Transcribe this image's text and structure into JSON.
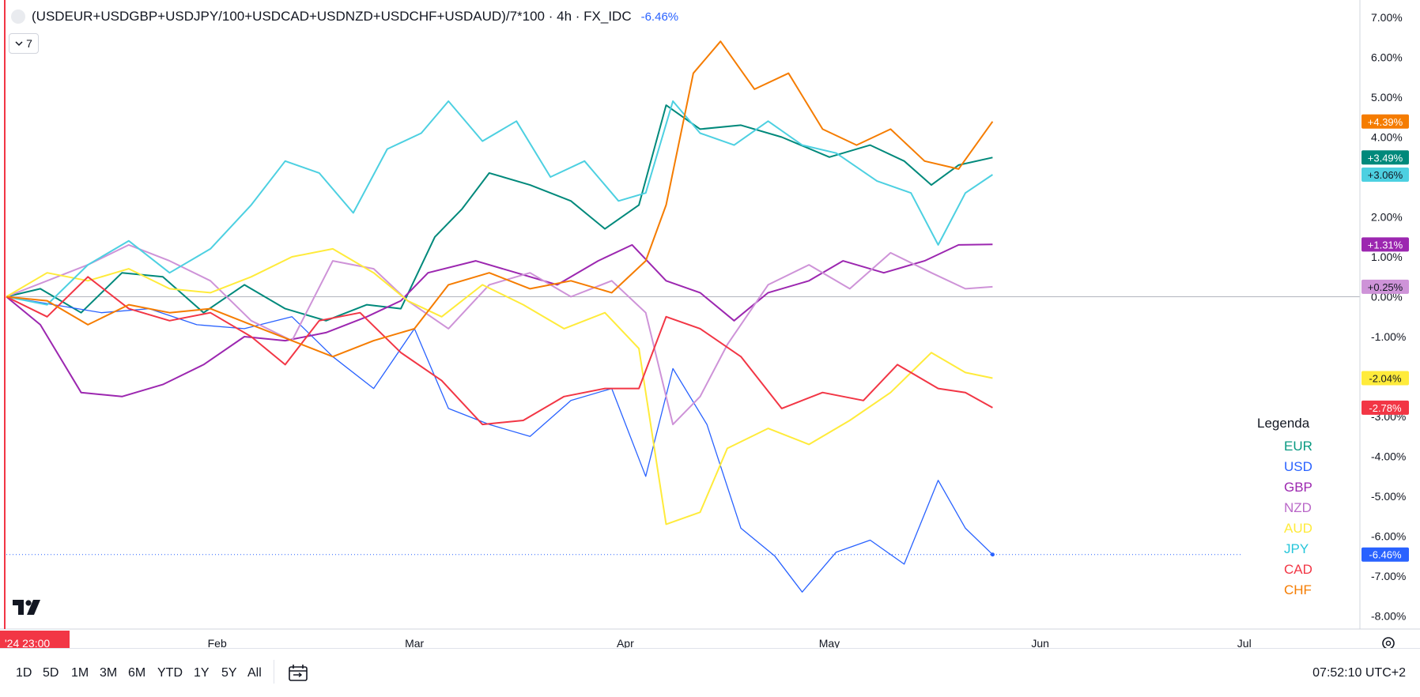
{
  "header": {
    "symbol": "(USDEUR+USDGBP+USDJPY/100+USDCAD+USDNZD+USDCHF+USDAUD)/7*100 · 4h · FX_IDC",
    "change": "-6.46%",
    "collapse_count": "7"
  },
  "legend": {
    "title": "Legenda",
    "items": [
      {
        "label": "EUR",
        "color": "#089981"
      },
      {
        "label": "USD",
        "color": "#2962ff"
      },
      {
        "label": "GBP",
        "color": "#9c27b0"
      },
      {
        "label": "NZD",
        "color": "#ba68c8"
      },
      {
        "label": "AUD",
        "color": "#ffeb3b"
      },
      {
        "label": "JPY",
        "color": "#26c6da"
      },
      {
        "label": "CAD",
        "color": "#f23645"
      },
      {
        "label": "CHF",
        "color": "#f57c00"
      }
    ]
  },
  "timeframes": [
    "1D",
    "5D",
    "1M",
    "3M",
    "6M",
    "YTD",
    "1Y",
    "5Y",
    "All"
  ],
  "clock": "07:52:10 UTC+2",
  "icons": {
    "calendar": "calendar-range-icon",
    "settings": "gear-icon",
    "logo": "tradingview-logo-icon",
    "chevron": "chevron-down-icon"
  },
  "chart_data": {
    "type": "line",
    "x_axis": {
      "cursor_label": "'24  23:00",
      "ticks": [
        {
          "label": "Feb",
          "date": "2024-02-01"
        },
        {
          "label": "Mar",
          "date": "2024-03-01"
        },
        {
          "label": "Apr",
          "date": "2024-04-01"
        },
        {
          "label": "May",
          "date": "2024-05-01"
        },
        {
          "label": "Jun",
          "date": "2024-06-01"
        },
        {
          "label": "Jul",
          "date": "2024-07-01"
        }
      ],
      "range": [
        "2024-01-01",
        "2024-07-18"
      ]
    },
    "y_axis": {
      "unit": "%",
      "range": [
        -8.3,
        7.4
      ],
      "ticks": [
        "7.00%",
        "6.00%",
        "5.00%",
        "4.00%",
        "3.00%",
        "2.00%",
        "1.00%",
        "0.00%",
        "-1.00%",
        "-2.00%",
        "-3.00%",
        "-4.00%",
        "-5.00%",
        "-6.00%",
        "-7.00%",
        "-8.00%"
      ],
      "tick_values": [
        7,
        6,
        5,
        4,
        3,
        2,
        1,
        0,
        -1,
        -2,
        -3,
        -4,
        -5,
        -6,
        -7,
        -8
      ]
    },
    "series": [
      {
        "name": "EUR",
        "color": "#00897b",
        "last_label": "+3.49%",
        "points": [
          [
            "2024-01-01",
            0
          ],
          [
            "2024-01-06",
            0.2
          ],
          [
            "2024-01-12",
            -0.4
          ],
          [
            "2024-01-18",
            0.6
          ],
          [
            "2024-01-24",
            0.5
          ],
          [
            "2024-01-30",
            -0.4
          ],
          [
            "2024-02-05",
            0.3
          ],
          [
            "2024-02-11",
            -0.3
          ],
          [
            "2024-02-17",
            -0.6
          ],
          [
            "2024-02-23",
            -0.2
          ],
          [
            "2024-02-28",
            -0.3
          ],
          [
            "2024-03-04",
            1.5
          ],
          [
            "2024-03-08",
            2.2
          ],
          [
            "2024-03-12",
            3.1
          ],
          [
            "2024-03-18",
            2.8
          ],
          [
            "2024-03-24",
            2.4
          ],
          [
            "2024-03-29",
            1.7
          ],
          [
            "2024-04-03",
            2.3
          ],
          [
            "2024-04-07",
            4.8
          ],
          [
            "2024-04-12",
            4.2
          ],
          [
            "2024-04-18",
            4.3
          ],
          [
            "2024-04-24",
            4.0
          ],
          [
            "2024-05-01",
            3.5
          ],
          [
            "2024-05-07",
            3.8
          ],
          [
            "2024-05-12",
            3.4
          ],
          [
            "2024-05-16",
            2.8
          ],
          [
            "2024-05-20",
            3.3
          ],
          [
            "2024-05-25",
            3.49
          ]
        ]
      },
      {
        "name": "USD",
        "color": "#2962ff",
        "last_label": "-6.46%",
        "points": [
          [
            "2024-01-01",
            0
          ],
          [
            "2024-01-08",
            -0.2
          ],
          [
            "2024-01-15",
            -0.4
          ],
          [
            "2024-01-22",
            -0.3
          ],
          [
            "2024-01-29",
            -0.7
          ],
          [
            "2024-02-05",
            -0.8
          ],
          [
            "2024-02-12",
            -0.5
          ],
          [
            "2024-02-18",
            -1.5
          ],
          [
            "2024-02-24",
            -2.3
          ],
          [
            "2024-03-01",
            -0.8
          ],
          [
            "2024-03-06",
            -2.8
          ],
          [
            "2024-03-12",
            -3.2
          ],
          [
            "2024-03-18",
            -3.5
          ],
          [
            "2024-03-24",
            -2.6
          ],
          [
            "2024-03-30",
            -2.3
          ],
          [
            "2024-04-04",
            -4.5
          ],
          [
            "2024-04-08",
            -1.8
          ],
          [
            "2024-04-13",
            -3.2
          ],
          [
            "2024-04-18",
            -5.8
          ],
          [
            "2024-04-23",
            -6.5
          ],
          [
            "2024-04-27",
            -7.4
          ],
          [
            "2024-05-02",
            -6.4
          ],
          [
            "2024-05-07",
            -6.1
          ],
          [
            "2024-05-12",
            -6.7
          ],
          [
            "2024-05-17",
            -4.6
          ],
          [
            "2024-05-21",
            -5.8
          ],
          [
            "2024-05-25",
            -6.46
          ]
        ]
      },
      {
        "name": "GBP",
        "color": "#9c27b0",
        "last_label": "+1.31%",
        "points": [
          [
            "2024-01-01",
            0
          ],
          [
            "2024-01-06",
            -0.7
          ],
          [
            "2024-01-12",
            -2.4
          ],
          [
            "2024-01-18",
            -2.5
          ],
          [
            "2024-01-24",
            -2.2
          ],
          [
            "2024-01-30",
            -1.7
          ],
          [
            "2024-02-05",
            -1.0
          ],
          [
            "2024-02-11",
            -1.1
          ],
          [
            "2024-02-17",
            -0.9
          ],
          [
            "2024-02-23",
            -0.5
          ],
          [
            "2024-02-28",
            -0.1
          ],
          [
            "2024-03-03",
            0.6
          ],
          [
            "2024-03-10",
            0.9
          ],
          [
            "2024-03-16",
            0.6
          ],
          [
            "2024-03-22",
            0.3
          ],
          [
            "2024-03-28",
            0.9
          ],
          [
            "2024-04-02",
            1.3
          ],
          [
            "2024-04-07",
            0.4
          ],
          [
            "2024-04-12",
            0.1
          ],
          [
            "2024-04-17",
            -0.6
          ],
          [
            "2024-04-22",
            0.1
          ],
          [
            "2024-04-28",
            0.4
          ],
          [
            "2024-05-03",
            0.9
          ],
          [
            "2024-05-09",
            0.6
          ],
          [
            "2024-05-15",
            0.9
          ],
          [
            "2024-05-20",
            1.3
          ],
          [
            "2024-05-25",
            1.31
          ]
        ]
      },
      {
        "name": "NZD",
        "color": "#ce93d8",
        "last_label": "+0.25%",
        "points": [
          [
            "2024-01-01",
            0
          ],
          [
            "2024-01-07",
            0.4
          ],
          [
            "2024-01-13",
            0.8
          ],
          [
            "2024-01-19",
            1.3
          ],
          [
            "2024-01-25",
            0.9
          ],
          [
            "2024-01-31",
            0.4
          ],
          [
            "2024-02-06",
            -0.6
          ],
          [
            "2024-02-12",
            -1.1
          ],
          [
            "2024-02-18",
            0.9
          ],
          [
            "2024-02-24",
            0.7
          ],
          [
            "2024-02-29",
            -0.1
          ],
          [
            "2024-03-06",
            -0.8
          ],
          [
            "2024-03-12",
            0.3
          ],
          [
            "2024-03-18",
            0.6
          ],
          [
            "2024-03-24",
            0.0
          ],
          [
            "2024-03-30",
            0.4
          ],
          [
            "2024-04-04",
            -0.4
          ],
          [
            "2024-04-08",
            -3.2
          ],
          [
            "2024-04-12",
            -2.5
          ],
          [
            "2024-04-16",
            -1.2
          ],
          [
            "2024-04-22",
            0.3
          ],
          [
            "2024-04-28",
            0.8
          ],
          [
            "2024-05-04",
            0.2
          ],
          [
            "2024-05-10",
            1.1
          ],
          [
            "2024-05-16",
            0.6
          ],
          [
            "2024-05-21",
            0.2
          ],
          [
            "2024-05-25",
            0.25
          ]
        ]
      },
      {
        "name": "AUD",
        "color": "#ffeb3b",
        "last_label": "-2.04%",
        "points": [
          [
            "2024-01-01",
            0
          ],
          [
            "2024-01-07",
            0.6
          ],
          [
            "2024-01-13",
            0.4
          ],
          [
            "2024-01-19",
            0.7
          ],
          [
            "2024-01-25",
            0.2
          ],
          [
            "2024-01-31",
            0.1
          ],
          [
            "2024-02-06",
            0.5
          ],
          [
            "2024-02-12",
            1.0
          ],
          [
            "2024-02-18",
            1.2
          ],
          [
            "2024-02-24",
            0.6
          ],
          [
            "2024-02-29",
            -0.1
          ],
          [
            "2024-03-05",
            -0.5
          ],
          [
            "2024-03-11",
            0.3
          ],
          [
            "2024-03-17",
            -0.2
          ],
          [
            "2024-03-23",
            -0.8
          ],
          [
            "2024-03-29",
            -0.4
          ],
          [
            "2024-04-03",
            -1.3
          ],
          [
            "2024-04-07",
            -5.7
          ],
          [
            "2024-04-12",
            -5.4
          ],
          [
            "2024-04-16",
            -3.8
          ],
          [
            "2024-04-22",
            -3.3
          ],
          [
            "2024-04-28",
            -3.7
          ],
          [
            "2024-05-04",
            -3.1
          ],
          [
            "2024-05-10",
            -2.4
          ],
          [
            "2024-05-16",
            -1.4
          ],
          [
            "2024-05-21",
            -1.9
          ],
          [
            "2024-05-25",
            -2.04
          ]
        ]
      },
      {
        "name": "JPY",
        "color": "#4dd0e1",
        "last_label": "+3.06%",
        "points": [
          [
            "2024-01-01",
            0
          ],
          [
            "2024-01-07",
            -0.2
          ],
          [
            "2024-01-13",
            0.8
          ],
          [
            "2024-01-19",
            1.4
          ],
          [
            "2024-01-25",
            0.6
          ],
          [
            "2024-01-31",
            1.2
          ],
          [
            "2024-02-06",
            2.3
          ],
          [
            "2024-02-11",
            3.4
          ],
          [
            "2024-02-16",
            3.1
          ],
          [
            "2024-02-21",
            2.1
          ],
          [
            "2024-02-26",
            3.7
          ],
          [
            "2024-03-02",
            4.1
          ],
          [
            "2024-03-06",
            4.9
          ],
          [
            "2024-03-11",
            3.9
          ],
          [
            "2024-03-16",
            4.4
          ],
          [
            "2024-03-21",
            3.0
          ],
          [
            "2024-03-26",
            3.4
          ],
          [
            "2024-03-31",
            2.4
          ],
          [
            "2024-04-04",
            2.6
          ],
          [
            "2024-04-08",
            4.9
          ],
          [
            "2024-04-12",
            4.1
          ],
          [
            "2024-04-17",
            3.8
          ],
          [
            "2024-04-22",
            4.4
          ],
          [
            "2024-04-27",
            3.8
          ],
          [
            "2024-05-02",
            3.6
          ],
          [
            "2024-05-08",
            2.9
          ],
          [
            "2024-05-13",
            2.6
          ],
          [
            "2024-05-17",
            1.3
          ],
          [
            "2024-05-21",
            2.6
          ],
          [
            "2024-05-25",
            3.06
          ]
        ]
      },
      {
        "name": "CAD",
        "color": "#f23645",
        "last_label": "-2.78%",
        "points": [
          [
            "2024-01-01",
            0
          ],
          [
            "2024-01-07",
            -0.5
          ],
          [
            "2024-01-13",
            0.5
          ],
          [
            "2024-01-19",
            -0.3
          ],
          [
            "2024-01-25",
            -0.6
          ],
          [
            "2024-01-31",
            -0.4
          ],
          [
            "2024-02-06",
            -1.0
          ],
          [
            "2024-02-11",
            -1.7
          ],
          [
            "2024-02-16",
            -0.6
          ],
          [
            "2024-02-22",
            -0.4
          ],
          [
            "2024-02-28",
            -1.4
          ],
          [
            "2024-03-05",
            -2.1
          ],
          [
            "2024-03-11",
            -3.2
          ],
          [
            "2024-03-17",
            -3.1
          ],
          [
            "2024-03-23",
            -2.5
          ],
          [
            "2024-03-29",
            -2.3
          ],
          [
            "2024-04-03",
            -2.3
          ],
          [
            "2024-04-07",
            -0.5
          ],
          [
            "2024-04-12",
            -0.8
          ],
          [
            "2024-04-18",
            -1.5
          ],
          [
            "2024-04-24",
            -2.8
          ],
          [
            "2024-04-30",
            -2.4
          ],
          [
            "2024-05-06",
            -2.6
          ],
          [
            "2024-05-11",
            -1.7
          ],
          [
            "2024-05-17",
            -2.3
          ],
          [
            "2024-05-21",
            -2.4
          ],
          [
            "2024-05-25",
            -2.78
          ]
        ]
      },
      {
        "name": "CHF",
        "color": "#f57c00",
        "last_label": "+4.39%",
        "points": [
          [
            "2024-01-01",
            0
          ],
          [
            "2024-01-07",
            -0.1
          ],
          [
            "2024-01-13",
            -0.7
          ],
          [
            "2024-01-19",
            -0.2
          ],
          [
            "2024-01-25",
            -0.4
          ],
          [
            "2024-01-31",
            -0.3
          ],
          [
            "2024-02-06",
            -0.7
          ],
          [
            "2024-02-12",
            -1.1
          ],
          [
            "2024-02-18",
            -1.5
          ],
          [
            "2024-02-24",
            -1.1
          ],
          [
            "2024-03-01",
            -0.8
          ],
          [
            "2024-03-06",
            0.3
          ],
          [
            "2024-03-12",
            0.6
          ],
          [
            "2024-03-18",
            0.2
          ],
          [
            "2024-03-24",
            0.4
          ],
          [
            "2024-03-30",
            0.1
          ],
          [
            "2024-04-04",
            0.9
          ],
          [
            "2024-04-07",
            2.3
          ],
          [
            "2024-04-11",
            5.6
          ],
          [
            "2024-04-15",
            6.4
          ],
          [
            "2024-04-20",
            5.2
          ],
          [
            "2024-04-25",
            5.6
          ],
          [
            "2024-04-30",
            4.2
          ],
          [
            "2024-05-05",
            3.8
          ],
          [
            "2024-05-10",
            4.2
          ],
          [
            "2024-05-15",
            3.4
          ],
          [
            "2024-05-20",
            3.2
          ],
          [
            "2024-05-25",
            4.39
          ]
        ]
      }
    ],
    "grid": false,
    "legend_position": "bottom-right",
    "zero_line": true
  }
}
